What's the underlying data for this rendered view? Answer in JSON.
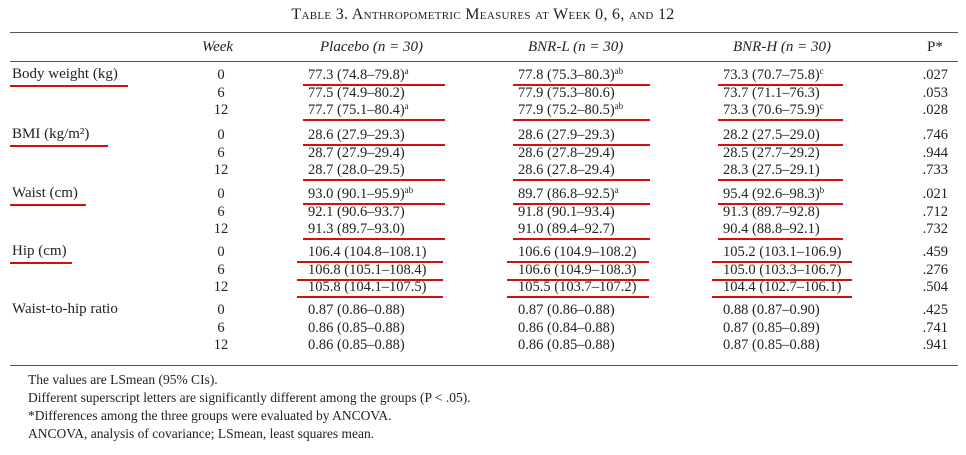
{
  "title": "Table 3. Anthropometric Measures at Week 0, 6, and 12",
  "headers": {
    "week": "Week",
    "placebo": "Placebo (n = 30)",
    "bnrl": "BNR-L (n = 30)",
    "bnrh": "BNR-H (n = 30)",
    "p": "P*"
  },
  "groups": [
    {
      "label": "Body weight (kg)",
      "rows": [
        {
          "week": "0",
          "placebo": "77.3 (74.8–79.8)",
          "placebo_sup": "a",
          "bnrl": "77.8 (75.3–80.3)",
          "bnrl_sup": "ab",
          "bnrh": "73.3 (70.7–75.8)",
          "bnrh_sup": "c",
          "p": ".027"
        },
        {
          "week": "6",
          "placebo": "77.5 (74.9–80.2)",
          "placebo_sup": "",
          "bnrl": "77.9 (75.3–80.6)",
          "bnrl_sup": "",
          "bnrh": "73.7 (71.1–76.3)",
          "bnrh_sup": "",
          "p": ".053"
        },
        {
          "week": "12",
          "placebo": "77.7 (75.1–80.4)",
          "placebo_sup": "a",
          "bnrl": "77.9 (75.2–80.5)",
          "bnrl_sup": "ab",
          "bnrh": "73.3 (70.6–75.9)",
          "bnrh_sup": "c",
          "p": ".028"
        }
      ]
    },
    {
      "label": "BMI (kg/m²)",
      "rows": [
        {
          "week": "0",
          "placebo": "28.6 (27.9–29.3)",
          "placebo_sup": "",
          "bnrl": "28.6 (27.9–29.3)",
          "bnrl_sup": "",
          "bnrh": "28.2 (27.5–29.0)",
          "bnrh_sup": "",
          "p": ".746"
        },
        {
          "week": "6",
          "placebo": "28.7 (27.9–29.4)",
          "placebo_sup": "",
          "bnrl": "28.6 (27.8–29.4)",
          "bnrl_sup": "",
          "bnrh": "28.5 (27.7–29.2)",
          "bnrh_sup": "",
          "p": ".944"
        },
        {
          "week": "12",
          "placebo": "28.7 (28.0–29.5)",
          "placebo_sup": "",
          "bnrl": "28.6 (27.8–29.4)",
          "bnrl_sup": "",
          "bnrh": "28.3 (27.5–29.1)",
          "bnrh_sup": "",
          "p": ".733"
        }
      ]
    },
    {
      "label": "Waist (cm)",
      "rows": [
        {
          "week": "0",
          "placebo": "93.0 (90.1–95.9)",
          "placebo_sup": "ab",
          "bnrl": "89.7 (86.8–92.5)",
          "bnrl_sup": "a",
          "bnrh": "95.4 (92.6–98.3)",
          "bnrh_sup": "b",
          "p": ".021"
        },
        {
          "week": "6",
          "placebo": "92.1 (90.6–93.7)",
          "placebo_sup": "",
          "bnrl": "91.8 (90.1–93.4)",
          "bnrl_sup": "",
          "bnrh": "91.3 (89.7–92.8)",
          "bnrh_sup": "",
          "p": ".712"
        },
        {
          "week": "12",
          "placebo": "91.3 (89.7–93.0)",
          "placebo_sup": "",
          "bnrl": "91.0 (89.4–92.7)",
          "bnrl_sup": "",
          "bnrh": "90.4 (88.8–92.1)",
          "bnrh_sup": "",
          "p": ".732"
        }
      ]
    },
    {
      "label": "Hip (cm)",
      "rows": [
        {
          "week": "0",
          "placebo": "106.4 (104.8–108.1)",
          "placebo_sup": "",
          "bnrl": "106.6 (104.9–108.2)",
          "bnrl_sup": "",
          "bnrh": "105.2 (103.1–106.9)",
          "bnrh_sup": "",
          "p": ".459"
        },
        {
          "week": "6",
          "placebo": "106.8 (105.1–108.4)",
          "placebo_sup": "",
          "bnrl": "106.6 (104.9–108.3)",
          "bnrl_sup": "",
          "bnrh": "105.0 (103.3–106.7)",
          "bnrh_sup": "",
          "p": ".276"
        },
        {
          "week": "12",
          "placebo": "105.8 (104.1–107.5)",
          "placebo_sup": "",
          "bnrl": "105.5 (103.7–107.2)",
          "bnrl_sup": "",
          "bnrh": "104.4 (102.7–106.1)",
          "bnrh_sup": "",
          "p": ".504"
        }
      ]
    },
    {
      "label": "Waist-to-hip ratio",
      "rows": [
        {
          "week": "0",
          "placebo": "0.87 (0.86–0.88)",
          "placebo_sup": "",
          "bnrl": "0.87 (0.86–0.88)",
          "bnrl_sup": "",
          "bnrh": "0.88 (0.87–0.90)",
          "bnrh_sup": "",
          "p": ".425"
        },
        {
          "week": "6",
          "placebo": "0.86 (0.85–0.88)",
          "placebo_sup": "",
          "bnrl": "0.86 (0.84–0.88)",
          "bnrl_sup": "",
          "bnrh": "0.87 (0.85–0.89)",
          "bnrh_sup": "",
          "p": ".741"
        },
        {
          "week": "12",
          "placebo": "0.86 (0.85–0.88)",
          "placebo_sup": "",
          "bnrl": "0.86 (0.85–0.88)",
          "bnrl_sup": "",
          "bnrh": "0.87 (0.85–0.88)",
          "bnrh_sup": "",
          "p": ".941"
        }
      ]
    }
  ],
  "footnotes": [
    "The values are LSmean (95% CIs).",
    "Different superscript letters are significantly different among the groups (P < .05).",
    "*Differences among the three groups were evaluated by ANCOVA.",
    "ANCOVA, analysis of covariance; LSmean, least squares mean."
  ],
  "annotation_color": "#d11111"
}
